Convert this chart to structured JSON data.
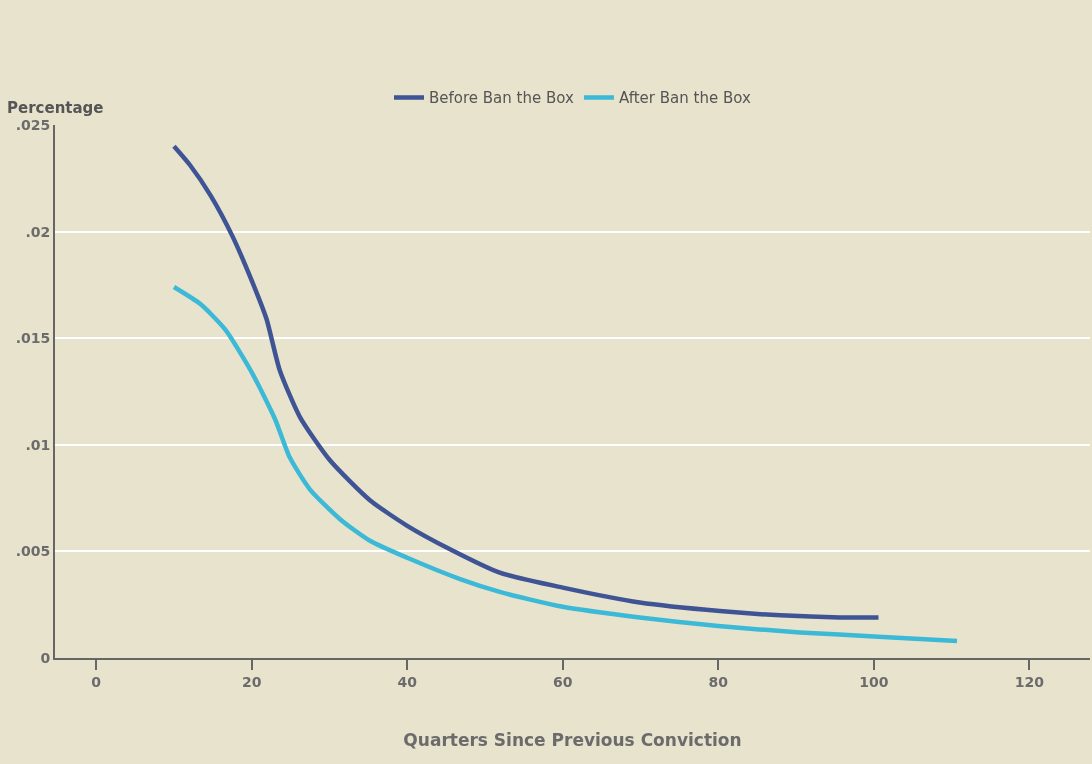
{
  "chart_data": {
    "type": "line",
    "xlabel": "Quarters Since Previous Conviction",
    "ylabel": "Percentage",
    "xlim": [
      -5.3,
      127.8
    ],
    "xticks": [
      0,
      20,
      40,
      60,
      80,
      100,
      120
    ],
    "ylim": [
      0,
      0.025
    ],
    "yticks": [
      {
        "value": 0,
        "label": "0"
      },
      {
        "value": 0.005,
        "label": ".005"
      },
      {
        "value": 0.01,
        "label": ".01"
      },
      {
        "value": 0.015,
        "label": ".015"
      },
      {
        "value": 0.02,
        "label": ".02"
      },
      {
        "value": 0.025,
        "label": ".025"
      }
    ],
    "grid": "y",
    "legend": "top",
    "line_style": "solid",
    "marker": "none",
    "series": [
      {
        "name": "Before Ban the Box",
        "color": "#3f5495",
        "x": [
          10,
          12.1,
          14.7,
          17.5,
          20,
          21.9,
          23.6,
          26.2,
          30,
          35.2,
          40,
          45.5,
          51.9,
          60,
          69.9,
          80.2,
          88,
          95.6,
          100.6
        ],
        "values": [
          0.024,
          0.0231,
          0.0217,
          0.0198,
          0.0177,
          0.0159,
          0.0135,
          0.0113,
          0.0093,
          0.0074,
          0.0062,
          0.0051,
          0.004,
          0.0033,
          0.0026,
          0.0022,
          0.002,
          0.0019,
          0.0019
        ]
      },
      {
        "name": "After Ban the Box",
        "color": "#3cb9d6",
        "x": [
          10,
          13.4,
          16.6,
          20,
          23,
          24.9,
          27.5,
          31.4,
          35.2,
          40,
          46.8,
          51.9,
          60,
          69.9,
          80,
          90.5,
          100.6,
          110.7
        ],
        "values": [
          0.0174,
          0.0166,
          0.0154,
          0.0134,
          0.0112,
          0.0094,
          0.0079,
          0.0065,
          0.0055,
          0.0047,
          0.0037,
          0.0031,
          0.0024,
          0.0019,
          0.0015,
          0.0012,
          0.001,
          0.0008
        ]
      }
    ]
  }
}
